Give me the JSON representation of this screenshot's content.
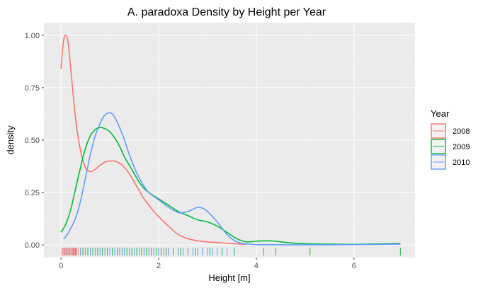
{
  "chart_data": {
    "type": "line",
    "title": "A. paradoxa Density by Height per Year",
    "xlabel": "Height [m]",
    "ylabel": "density",
    "xlim": [
      -0.35,
      7.25
    ],
    "ylim": [
      -0.06,
      1.06
    ],
    "x_ticks": [
      0,
      2,
      4,
      6
    ],
    "x_tick_labels": [
      "0",
      "2",
      "4",
      "6"
    ],
    "y_ticks": [
      0,
      0.25,
      0.5,
      0.75,
      1.0
    ],
    "y_tick_labels": [
      "0.00",
      "0.25",
      "0.50",
      "0.75",
      "1.00"
    ],
    "grid": true,
    "legend": {
      "title": "Year",
      "position": "right"
    },
    "series": [
      {
        "name": "2008",
        "color": "#F8766D",
        "x": [
          0.0,
          0.05,
          0.1,
          0.15,
          0.2,
          0.3,
          0.4,
          0.5,
          0.6,
          0.7,
          0.8,
          0.9,
          1.0,
          1.1,
          1.2,
          1.3,
          1.4,
          1.5,
          1.6,
          1.7,
          1.8,
          1.9,
          2.0,
          2.2,
          2.4,
          2.6,
          2.8,
          3.0,
          3.2,
          3.4,
          3.6,
          3.8
        ],
        "values": [
          0.84,
          0.97,
          1.0,
          0.96,
          0.84,
          0.6,
          0.45,
          0.37,
          0.35,
          0.36,
          0.38,
          0.395,
          0.4,
          0.4,
          0.39,
          0.37,
          0.34,
          0.3,
          0.26,
          0.22,
          0.19,
          0.16,
          0.135,
          0.09,
          0.05,
          0.03,
          0.02,
          0.015,
          0.012,
          0.008,
          0.005,
          0.003
        ]
      },
      {
        "name": "2009",
        "color": "#00BA38",
        "x": [
          0.0,
          0.1,
          0.2,
          0.3,
          0.4,
          0.5,
          0.6,
          0.7,
          0.8,
          0.9,
          1.0,
          1.1,
          1.2,
          1.3,
          1.4,
          1.5,
          1.6,
          1.7,
          1.8,
          2.0,
          2.2,
          2.4,
          2.6,
          2.8,
          3.0,
          3.2,
          3.4,
          3.6,
          3.8,
          4.0,
          4.2,
          4.4,
          4.6,
          5.0,
          5.5,
          6.0,
          6.5,
          6.95
        ],
        "values": [
          0.06,
          0.1,
          0.17,
          0.27,
          0.37,
          0.46,
          0.52,
          0.55,
          0.56,
          0.555,
          0.54,
          0.51,
          0.47,
          0.42,
          0.38,
          0.34,
          0.3,
          0.27,
          0.25,
          0.22,
          0.19,
          0.16,
          0.14,
          0.12,
          0.11,
          0.09,
          0.06,
          0.03,
          0.015,
          0.018,
          0.02,
          0.018,
          0.012,
          0.006,
          0.004,
          0.003,
          0.005,
          0.007
        ]
      },
      {
        "name": "2010",
        "color": "#619CFF",
        "x": [
          0.05,
          0.1,
          0.2,
          0.3,
          0.4,
          0.5,
          0.6,
          0.7,
          0.8,
          0.9,
          1.0,
          1.05,
          1.1,
          1.2,
          1.3,
          1.4,
          1.5,
          1.6,
          1.7,
          1.8,
          2.0,
          2.2,
          2.4,
          2.5,
          2.6,
          2.7,
          2.8,
          2.9,
          3.0,
          3.2,
          3.4,
          3.6,
          3.8,
          4.0,
          4.5,
          5.0,
          5.5,
          6.0,
          6.5,
          6.95
        ],
        "values": [
          0.03,
          0.04,
          0.08,
          0.13,
          0.21,
          0.32,
          0.43,
          0.52,
          0.58,
          0.62,
          0.63,
          0.625,
          0.61,
          0.56,
          0.5,
          0.43,
          0.37,
          0.32,
          0.28,
          0.25,
          0.215,
          0.18,
          0.155,
          0.155,
          0.16,
          0.17,
          0.18,
          0.175,
          0.16,
          0.11,
          0.05,
          0.015,
          0.005,
          0.002,
          0.001,
          0.001,
          0.001,
          0.002,
          0.003,
          0.004
        ]
      }
    ],
    "rug": {
      "description": "rug marks along the x-axis below zero",
      "series": [
        {
          "name": "2008",
          "color": "#F8766D",
          "x": [
            0.02,
            0.04,
            0.06,
            0.08,
            0.1,
            0.12,
            0.14,
            0.16,
            0.18,
            0.2,
            0.22,
            0.24,
            0.26,
            0.28,
            0.3,
            0.32,
            0.35,
            0.4,
            0.45,
            0.5,
            0.55,
            0.6,
            0.7,
            0.8,
            0.9,
            1.0,
            1.1,
            1.2,
            1.3,
            1.4,
            1.5,
            1.6,
            1.7,
            1.8,
            1.9,
            2.0,
            2.1,
            2.2,
            2.4,
            2.6,
            2.8,
            3.0
          ]
        },
        {
          "name": "2009",
          "color": "#00BA38",
          "x": [
            0.3,
            0.45,
            0.55,
            0.65,
            0.75,
            0.85,
            0.95,
            1.05,
            1.15,
            1.25,
            1.35,
            1.45,
            1.55,
            1.65,
            1.75,
            1.85,
            1.95,
            2.05,
            2.15,
            2.3,
            2.45,
            2.6,
            2.75,
            2.9,
            3.05,
            3.3,
            3.55,
            4.15,
            4.4,
            5.1,
            6.95
          ]
        },
        {
          "name": "2010",
          "color": "#619CFF",
          "x": [
            0.1,
            0.25,
            0.4,
            0.5,
            0.6,
            0.7,
            0.8,
            0.9,
            1.0,
            1.1,
            1.2,
            1.3,
            1.4,
            1.5,
            1.6,
            1.7,
            1.8,
            1.9,
            2.0,
            2.2,
            2.4,
            2.5,
            2.6,
            2.7,
            2.8,
            2.9,
            3.0,
            3.1,
            3.2,
            3.4
          ]
        }
      ]
    }
  }
}
